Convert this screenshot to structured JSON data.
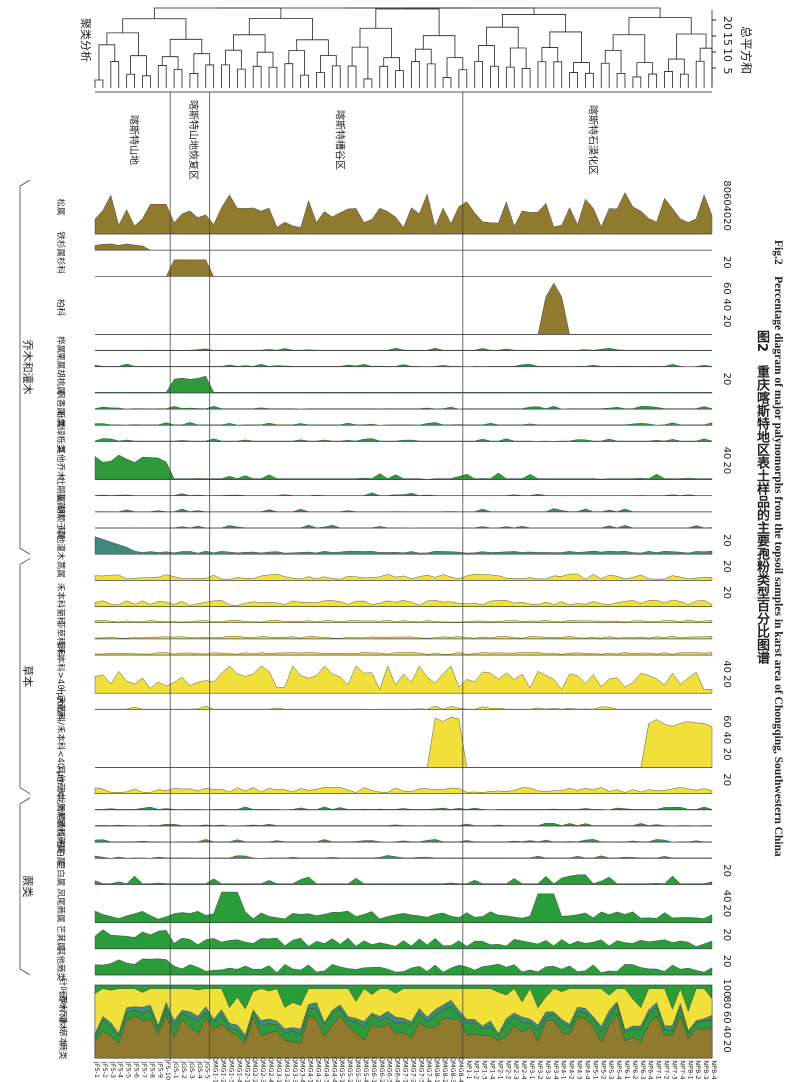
{
  "figure": {
    "caption_zh": "图2　重庆喀斯特地区表土样品的主要孢粉类型百分比图谱",
    "caption_en": "Fig.2　Percentage diagram of major palynomorphs from the topsoil samples in karst area of Chongqing, Southwestern China"
  },
  "cluster": {
    "label": "聚类分析",
    "axis_label": "总平方和",
    "ticks": [
      "5",
      "10",
      "15",
      "20"
    ],
    "zone_ticks": [
      "5",
      "10",
      "15",
      "20"
    ]
  },
  "zones": [
    {
      "name": "喀斯特山地"
    },
    {
      "name": "喀斯特山地恢复区"
    },
    {
      "name": "喀斯特槽谷区"
    },
    {
      "name": "喀斯特石漠化区"
    }
  ],
  "groups": [
    "乔木和灌木",
    "草本",
    "蕨类"
  ],
  "summary_labels": [
    "针叶乔木",
    "阔叶乔木",
    "灌木",
    "草本",
    "蕨类"
  ],
  "summary_ticks": [
    "20",
    "40",
    "60",
    "80",
    "100"
  ],
  "samples": [
    "JFS-1",
    "JFS-2",
    "JFS-3",
    "JFS-4",
    "JFS-5",
    "JFS-6",
    "JFS-7",
    "JFS-8",
    "JFS-9",
    "JFS-10",
    "JGS-1",
    "JGS-2",
    "JGS-3",
    "JGS-4",
    "JGS-5",
    "QMG1-1",
    "QMG1-2",
    "QMG1-3",
    "QMG1-4",
    "QMG2-1",
    "QMG2-2",
    "QMG2-3",
    "QMG2-4",
    "QMG3-1",
    "QMG3-2",
    "QMG3-3",
    "QMG3-4",
    "QMG4-1",
    "QMG4-2",
    "QMG4-3",
    "QMG4-4",
    "QMG5-1",
    "QMG5-2",
    "QMG5-3",
    "QMG5-4",
    "QMG6-1",
    "QMG6-2",
    "QMG6-3",
    "QMG6-4",
    "QMG7-1",
    "QMG7-2",
    "QMG7-3",
    "QMG7-4",
    "QMG8-1",
    "QMG8-2",
    "QMG8-3",
    "QMG8-4",
    "NP1-1",
    "NP1-2",
    "NP1-3",
    "NP1-4",
    "NP2-1",
    "NP2-2",
    "NP2-3",
    "NP2-4",
    "NP3-1",
    "NP3-2",
    "NP3-3",
    "NP3-4",
    "NP4-1",
    "NP4-2",
    "NP4-3",
    "NP4-4",
    "NP5-1",
    "NP5-2",
    "NP5-3",
    "NP5-4",
    "NP6-1",
    "NP6-2",
    "NP6-3",
    "NP6-4",
    "NP7-1",
    "NP7-2",
    "NP7-3",
    "NP7-4",
    "NP8-1",
    "NP8-2",
    "NP8-3",
    "NP8-4"
  ],
  "colors": {
    "conifer": "#8f7a2e",
    "broadleaf": "#2e9a3c",
    "shrub": "#3f8a7e",
    "herb": "#f1e03a",
    "fern": "#2a9c3a",
    "frame": "#444444"
  },
  "taxa": [
    {
      "name": "松属",
      "group": "conifer",
      "ticks": [
        "20",
        "40",
        "60",
        "80"
      ],
      "shape": "pine"
    },
    {
      "name": "铁杉属",
      "group": "conifer",
      "ticks": [],
      "shape": "hemlock"
    },
    {
      "name": "杉科",
      "group": "conifer",
      "ticks": [
        "20"
      ],
      "shape": "taxod"
    },
    {
      "name": "柏科",
      "group": "conifer",
      "ticks": [
        "20",
        "40",
        "60"
      ],
      "shape": "cupress"
    },
    {
      "name": "桦属",
      "group": "broadleaf",
      "ticks": [],
      "shape": "small"
    },
    {
      "name": "栗属",
      "group": "broadleaf",
      "ticks": [],
      "shape": "small"
    },
    {
      "name": "胡桃属",
      "group": "broadleaf",
      "ticks": [
        "20"
      ],
      "shape": "juglans"
    },
    {
      "name": "枫香属",
      "group": "broadleaf",
      "ticks": [],
      "shape": "small"
    },
    {
      "name": "栎属",
      "group": "broadleaf",
      "ticks": [],
      "shape": "small"
    },
    {
      "name": "常绿栎类",
      "group": "broadleaf",
      "ticks": [],
      "shape": "small"
    },
    {
      "name": "其他乔木",
      "group": "broadleaf",
      "ticks": [
        "20",
        "40"
      ],
      "shape": "otree"
    },
    {
      "name": "杜鹃属",
      "group": "shrub",
      "ticks": [],
      "shape": "tiny"
    },
    {
      "name": "蔷薇科",
      "group": "shrub",
      "ticks": [],
      "shape": "tiny"
    },
    {
      "name": "胡颓子属",
      "group": "shrub",
      "ticks": [],
      "shape": "tiny"
    },
    {
      "name": "其他灌木",
      "group": "shrub",
      "ticks": [
        "20"
      ],
      "shape": "oshrub"
    },
    {
      "name": "蒿属",
      "group": "herb",
      "ticks": [
        "20"
      ],
      "shape": "herb"
    },
    {
      "name": "禾本科",
      "group": "herb",
      "ticks": [
        "20"
      ],
      "shape": "herb"
    },
    {
      "name": "菊科",
      "group": "herb",
      "ticks": [],
      "shape": "herbs"
    },
    {
      "name": "莎草科",
      "group": "herb",
      "ticks": [],
      "shape": "herbs"
    },
    {
      "name": "藜科",
      "group": "herb",
      "ticks": [],
      "shape": "herbs"
    },
    {
      "name": "禾本科>40 μm",
      "group": "herb",
      "ticks": [
        "20",
        "40"
      ],
      "shape": "poa40"
    },
    {
      "name": "十字花科",
      "group": "herb",
      "ticks": [],
      "shape": "tiny"
    },
    {
      "name": "大戟科/禾本科<40 μm",
      "group": "herb",
      "ticks": [
        "20",
        "40",
        "60"
      ],
      "shape": "euph"
    },
    {
      "name": "其他草本",
      "group": "herb",
      "ticks": [
        "20"
      ],
      "shape": "herb"
    },
    {
      "name": "水龙骨科",
      "group": "fern",
      "ticks": [],
      "shape": "small"
    },
    {
      "name": "凤尾蕨科",
      "group": "fern",
      "ticks": [],
      "shape": "small"
    },
    {
      "name": "铁线蕨属",
      "group": "fern",
      "ticks": [],
      "shape": "small"
    },
    {
      "name": "卷柏属",
      "group": "fern",
      "ticks": [],
      "shape": "small"
    },
    {
      "name": "里白属",
      "group": "fern",
      "ticks": [
        "20"
      ],
      "shape": "small2"
    },
    {
      "name": "凤尾蕨属",
      "group": "fern",
      "ticks": [
        "20",
        "40"
      ],
      "shape": "pteris"
    },
    {
      "name": "芒萁属",
      "group": "fern",
      "ticks": [
        "20"
      ],
      "shape": "fernm"
    },
    {
      "name": "其他蕨类",
      "group": "fern",
      "ticks": [
        "20"
      ],
      "shape": "fernm"
    }
  ]
}
